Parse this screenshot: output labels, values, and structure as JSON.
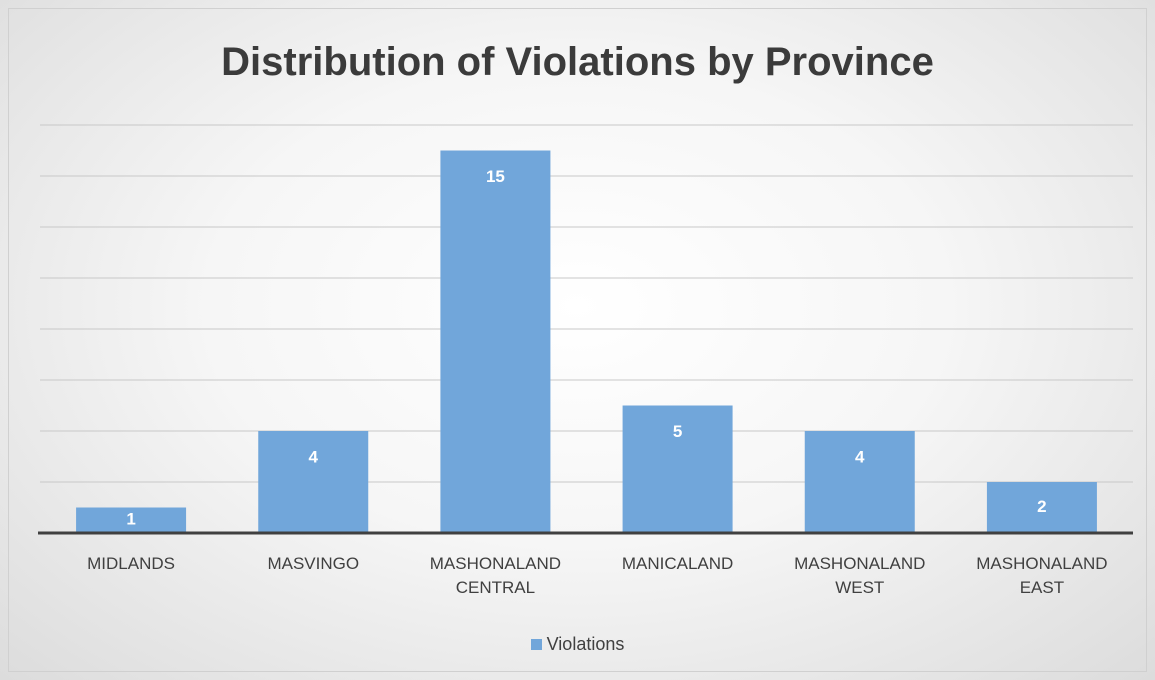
{
  "chart_data": {
    "type": "bar",
    "title": "Distribution of Violations by Province",
    "categories": [
      "MIDLANDS",
      "MASVINGO",
      "MASHONALAND CENTRAL",
      "MANICALAND",
      "MASHONALAND WEST",
      "MASHONALAND EAST"
    ],
    "series": [
      {
        "name": "Violations",
        "color": "#71a6da",
        "values": [
          1,
          4,
          15,
          5,
          4,
          2
        ]
      }
    ],
    "ylim": [
      0,
      16
    ],
    "yticks": [
      0,
      2,
      4,
      6,
      8,
      10,
      12,
      14,
      16
    ],
    "grid": true,
    "legend": "bottom"
  }
}
